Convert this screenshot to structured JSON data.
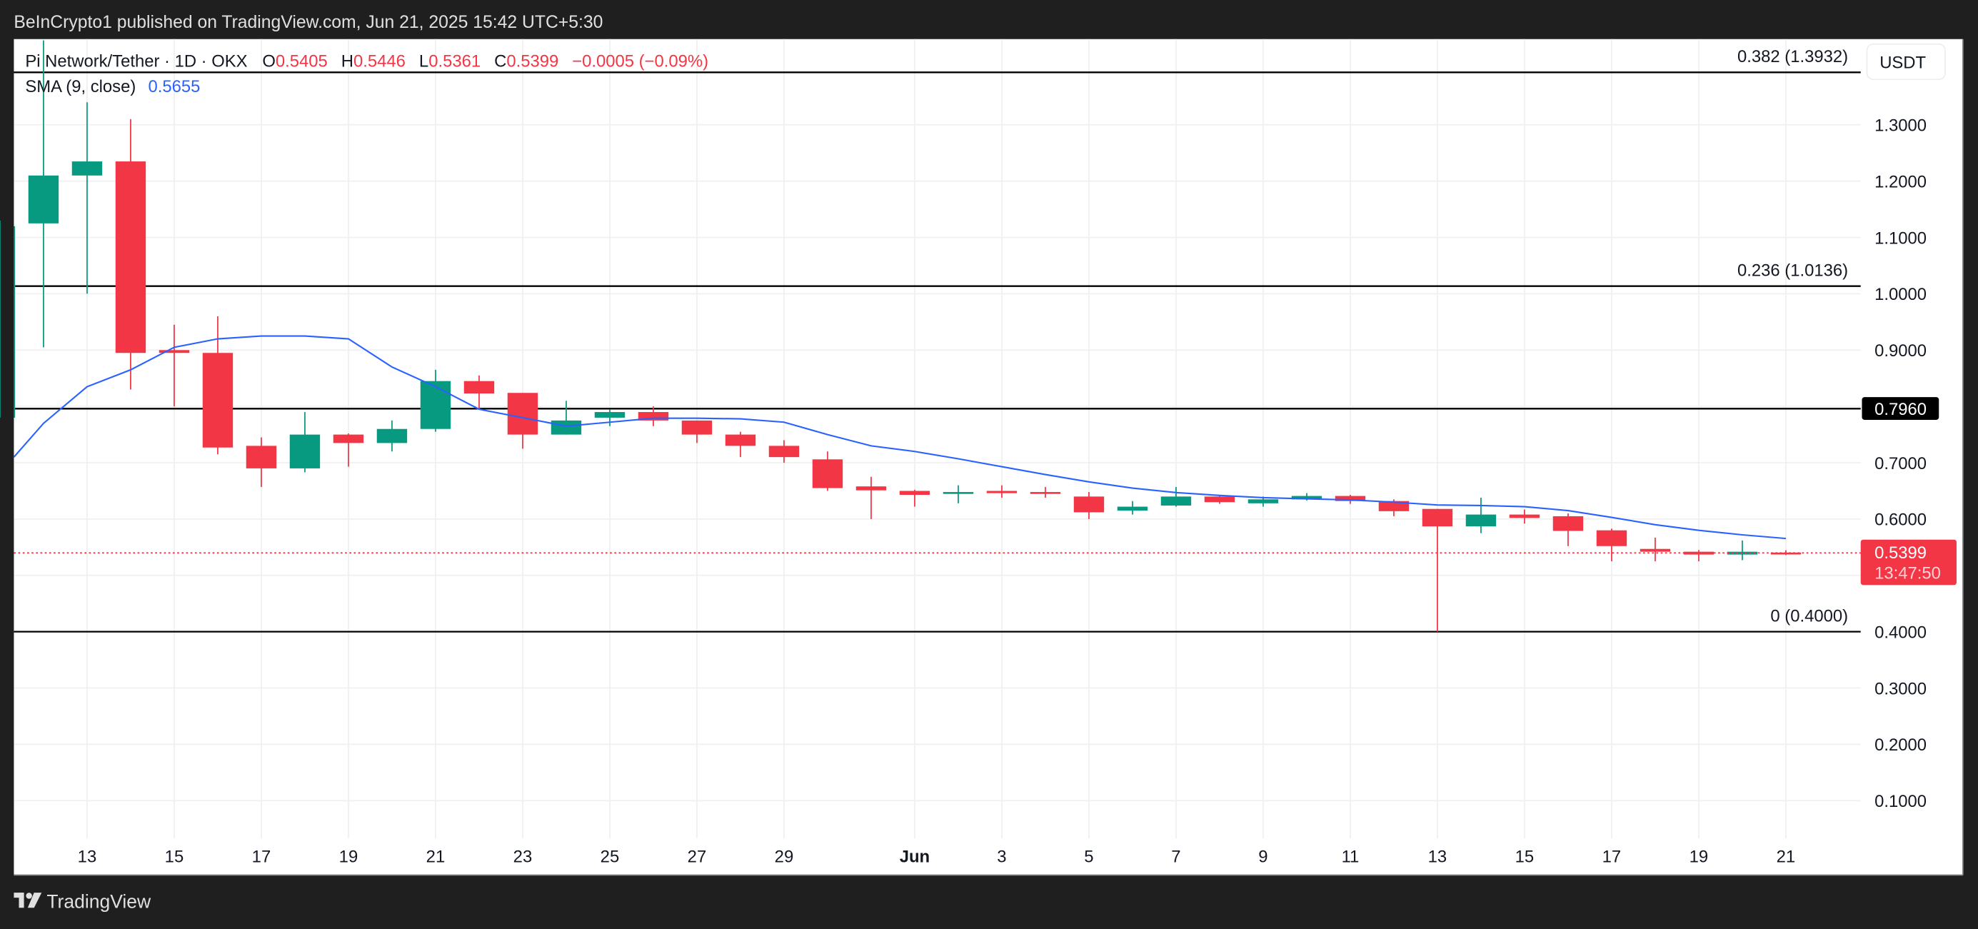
{
  "header": {
    "published_by": "BeInCrypto1 published on TradingView.com, Jun 21, 2025 15:42 UTC+5:30"
  },
  "legend": {
    "symbol": "Pi Network/Tether · 1D · OKX",
    "o_label": "O",
    "o_value": "0.5405",
    "h_label": "H",
    "h_value": "0.5446",
    "l_label": "L",
    "l_value": "0.5361",
    "c_label": "C",
    "c_value": "0.5399",
    "change": "−0.0005 (−0.09%)",
    "sma_label": "SMA (9, close)",
    "sma_value": "0.5655"
  },
  "axis": {
    "currency_button": "USDT",
    "current_price_tag": "0.5399",
    "countdown": "13:47:50",
    "level_tag": "0.7960"
  },
  "footer": {
    "brand": "TradingView",
    "logo_icon": "tradingview-logo-icon"
  },
  "colors": {
    "up": "#089981",
    "down": "#F23645",
    "sma": "#2962FF",
    "frame": "#1F1F1F",
    "grid": "#F0F0F0",
    "text": "#131722"
  },
  "chart_data": {
    "type": "candlestick",
    "title": "Pi Network/Tether · 1D · OKX",
    "xlabel": "",
    "ylabel": "USDT",
    "ylim": [
      0.05,
      1.45
    ],
    "y_ticks": [
      "1.3000",
      "1.2000",
      "1.1000",
      "1.0000",
      "0.9000",
      "0.7000",
      "0.6000",
      "0.4000",
      "0.3000",
      "0.2000",
      "0.1000"
    ],
    "x_ticks": [
      {
        "label": "13",
        "i": 1
      },
      {
        "label": "15",
        "i": 3
      },
      {
        "label": "17",
        "i": 5
      },
      {
        "label": "19",
        "i": 7
      },
      {
        "label": "21",
        "i": 9
      },
      {
        "label": "23",
        "i": 11
      },
      {
        "label": "25",
        "i": 13
      },
      {
        "label": "27",
        "i": 15
      },
      {
        "label": "29",
        "i": 17
      },
      {
        "label": "Jun",
        "i": 20,
        "bold": true
      },
      {
        "label": "3",
        "i": 22
      },
      {
        "label": "5",
        "i": 24
      },
      {
        "label": "7",
        "i": 26
      },
      {
        "label": "9",
        "i": 28
      },
      {
        "label": "11",
        "i": 30
      },
      {
        "label": "13",
        "i": 32
      },
      {
        "label": "15",
        "i": 34
      },
      {
        "label": "17",
        "i": 36
      },
      {
        "label": "19",
        "i": 38
      },
      {
        "label": "21",
        "i": 40
      }
    ],
    "fib_levels": [
      {
        "ratio": "0.382",
        "price": 1.3932,
        "label": "0.382 (1.3932)"
      },
      {
        "ratio": "0.236",
        "price": 1.0136,
        "label": "0.236 (1.0136)"
      },
      {
        "ratio": "level",
        "price": 0.796,
        "label": ""
      },
      {
        "ratio": "0",
        "price": 0.4,
        "label": "0 (0.4000)"
      }
    ],
    "current_price": 0.5399,
    "candles": [
      {
        "date": "May 11",
        "i": -1,
        "o": 0.78,
        "h": 1.13,
        "l": 0.78,
        "c": 1.12
      },
      {
        "date": "May 12",
        "i": 0,
        "o": 1.125,
        "h": 1.45,
        "l": 0.905,
        "c": 1.21
      },
      {
        "date": "May 13",
        "i": 1,
        "o": 1.21,
        "h": 1.34,
        "l": 1.0,
        "c": 1.235
      },
      {
        "date": "May 14",
        "i": 2,
        "o": 1.235,
        "h": 1.31,
        "l": 0.83,
        "c": 0.895
      },
      {
        "date": "May 15",
        "i": 3,
        "o": 0.9,
        "h": 0.945,
        "l": 0.8,
        "c": 0.895
      },
      {
        "date": "May 16",
        "i": 4,
        "o": 0.895,
        "h": 0.96,
        "l": 0.715,
        "c": 0.727
      },
      {
        "date": "May 17",
        "i": 5,
        "o": 0.73,
        "h": 0.745,
        "l": 0.657,
        "c": 0.69
      },
      {
        "date": "May 18",
        "i": 6,
        "o": 0.69,
        "h": 0.79,
        "l": 0.683,
        "c": 0.75
      },
      {
        "date": "May 19",
        "i": 7,
        "o": 0.75,
        "h": 0.752,
        "l": 0.693,
        "c": 0.735
      },
      {
        "date": "May 20",
        "i": 8,
        "o": 0.735,
        "h": 0.775,
        "l": 0.72,
        "c": 0.76
      },
      {
        "date": "May 21",
        "i": 9,
        "o": 0.76,
        "h": 0.865,
        "l": 0.755,
        "c": 0.845
      },
      {
        "date": "May 22",
        "i": 10,
        "o": 0.845,
        "h": 0.855,
        "l": 0.795,
        "c": 0.823
      },
      {
        "date": "May 23",
        "i": 11,
        "o": 0.824,
        "h": 0.824,
        "l": 0.725,
        "c": 0.75
      },
      {
        "date": "May 24",
        "i": 12,
        "o": 0.75,
        "h": 0.81,
        "l": 0.75,
        "c": 0.775
      },
      {
        "date": "May 25",
        "i": 13,
        "o": 0.78,
        "h": 0.795,
        "l": 0.765,
        "c": 0.79
      },
      {
        "date": "May 26",
        "i": 14,
        "o": 0.79,
        "h": 0.8,
        "l": 0.765,
        "c": 0.775
      },
      {
        "date": "May 27",
        "i": 15,
        "o": 0.775,
        "h": 0.775,
        "l": 0.735,
        "c": 0.75
      },
      {
        "date": "May 28",
        "i": 16,
        "o": 0.75,
        "h": 0.755,
        "l": 0.71,
        "c": 0.73
      },
      {
        "date": "May 29",
        "i": 17,
        "o": 0.73,
        "h": 0.74,
        "l": 0.7,
        "c": 0.71
      },
      {
        "date": "May 30",
        "i": 18,
        "o": 0.706,
        "h": 0.72,
        "l": 0.65,
        "c": 0.655
      },
      {
        "date": "May 31",
        "i": 19,
        "o": 0.658,
        "h": 0.675,
        "l": 0.6,
        "c": 0.651
      },
      {
        "date": "Jun 1",
        "i": 20,
        "o": 0.65,
        "h": 0.652,
        "l": 0.622,
        "c": 0.643
      },
      {
        "date": "Jun 2",
        "i": 21,
        "o": 0.645,
        "h": 0.66,
        "l": 0.628,
        "c": 0.648
      },
      {
        "date": "Jun 3",
        "i": 22,
        "o": 0.65,
        "h": 0.66,
        "l": 0.638,
        "c": 0.646
      },
      {
        "date": "Jun 4",
        "i": 23,
        "o": 0.648,
        "h": 0.657,
        "l": 0.638,
        "c": 0.645
      },
      {
        "date": "Jun 5",
        "i": 24,
        "o": 0.64,
        "h": 0.648,
        "l": 0.6,
        "c": 0.612
      },
      {
        "date": "Jun 6",
        "i": 25,
        "o": 0.615,
        "h": 0.632,
        "l": 0.608,
        "c": 0.622
      },
      {
        "date": "Jun 7",
        "i": 26,
        "o": 0.624,
        "h": 0.657,
        "l": 0.622,
        "c": 0.64
      },
      {
        "date": "Jun 8",
        "i": 27,
        "o": 0.64,
        "h": 0.642,
        "l": 0.627,
        "c": 0.63
      },
      {
        "date": "Jun 9",
        "i": 28,
        "o": 0.628,
        "h": 0.64,
        "l": 0.622,
        "c": 0.635
      },
      {
        "date": "Jun 10",
        "i": 29,
        "o": 0.635,
        "h": 0.646,
        "l": 0.633,
        "c": 0.641
      },
      {
        "date": "Jun 11",
        "i": 30,
        "o": 0.641,
        "h": 0.643,
        "l": 0.627,
        "c": 0.632
      },
      {
        "date": "Jun 12",
        "i": 31,
        "o": 0.632,
        "h": 0.635,
        "l": 0.605,
        "c": 0.614
      },
      {
        "date": "Jun 13",
        "i": 32,
        "o": 0.618,
        "h": 0.618,
        "l": 0.4,
        "c": 0.587
      },
      {
        "date": "Jun 14",
        "i": 33,
        "o": 0.587,
        "h": 0.638,
        "l": 0.575,
        "c": 0.608
      },
      {
        "date": "Jun 15",
        "i": 34,
        "o": 0.608,
        "h": 0.617,
        "l": 0.592,
        "c": 0.602
      },
      {
        "date": "Jun 16",
        "i": 35,
        "o": 0.605,
        "h": 0.61,
        "l": 0.552,
        "c": 0.579
      },
      {
        "date": "Jun 17",
        "i": 36,
        "o": 0.58,
        "h": 0.583,
        "l": 0.525,
        "c": 0.552
      },
      {
        "date": "Jun 18",
        "i": 37,
        "o": 0.547,
        "h": 0.567,
        "l": 0.525,
        "c": 0.542
      },
      {
        "date": "Jun 19",
        "i": 38,
        "o": 0.542,
        "h": 0.545,
        "l": 0.525,
        "c": 0.537
      },
      {
        "date": "Jun 20",
        "i": 39,
        "o": 0.537,
        "h": 0.562,
        "l": 0.527,
        "c": 0.542
      },
      {
        "date": "Jun 21",
        "i": 40,
        "o": 0.5405,
        "h": 0.5446,
        "l": 0.5361,
        "c": 0.5399
      }
    ],
    "sma": {
      "name": "SMA (9, close)",
      "points": [
        {
          "i": -1.1,
          "v": 0.71
        },
        {
          "i": 0,
          "v": 0.77
        },
        {
          "i": 1,
          "v": 0.835
        },
        {
          "i": 2,
          "v": 0.865
        },
        {
          "i": 3,
          "v": 0.905
        },
        {
          "i": 4,
          "v": 0.92
        },
        {
          "i": 5,
          "v": 0.925
        },
        {
          "i": 6,
          "v": 0.925
        },
        {
          "i": 7,
          "v": 0.92
        },
        {
          "i": 8,
          "v": 0.87
        },
        {
          "i": 9,
          "v": 0.835
        },
        {
          "i": 10,
          "v": 0.795
        },
        {
          "i": 11,
          "v": 0.78
        },
        {
          "i": 12,
          "v": 0.765
        },
        {
          "i": 13,
          "v": 0.772
        },
        {
          "i": 14,
          "v": 0.779
        },
        {
          "i": 15,
          "v": 0.779
        },
        {
          "i": 16,
          "v": 0.778
        },
        {
          "i": 17,
          "v": 0.772
        },
        {
          "i": 18,
          "v": 0.75
        },
        {
          "i": 19,
          "v": 0.73
        },
        {
          "i": 20,
          "v": 0.72
        },
        {
          "i": 21,
          "v": 0.707
        },
        {
          "i": 22,
          "v": 0.693
        },
        {
          "i": 23,
          "v": 0.679
        },
        {
          "i": 24,
          "v": 0.666
        },
        {
          "i": 25,
          "v": 0.655
        },
        {
          "i": 26,
          "v": 0.647
        },
        {
          "i": 27,
          "v": 0.642
        },
        {
          "i": 28,
          "v": 0.638
        },
        {
          "i": 29,
          "v": 0.636
        },
        {
          "i": 30,
          "v": 0.634
        },
        {
          "i": 31,
          "v": 0.63
        },
        {
          "i": 32,
          "v": 0.625
        },
        {
          "i": 33,
          "v": 0.624
        },
        {
          "i": 34,
          "v": 0.622
        },
        {
          "i": 35,
          "v": 0.615
        },
        {
          "i": 36,
          "v": 0.603
        },
        {
          "i": 37,
          "v": 0.59
        },
        {
          "i": 38,
          "v": 0.58
        },
        {
          "i": 39,
          "v": 0.572
        },
        {
          "i": 40,
          "v": 0.5655
        }
      ]
    }
  }
}
